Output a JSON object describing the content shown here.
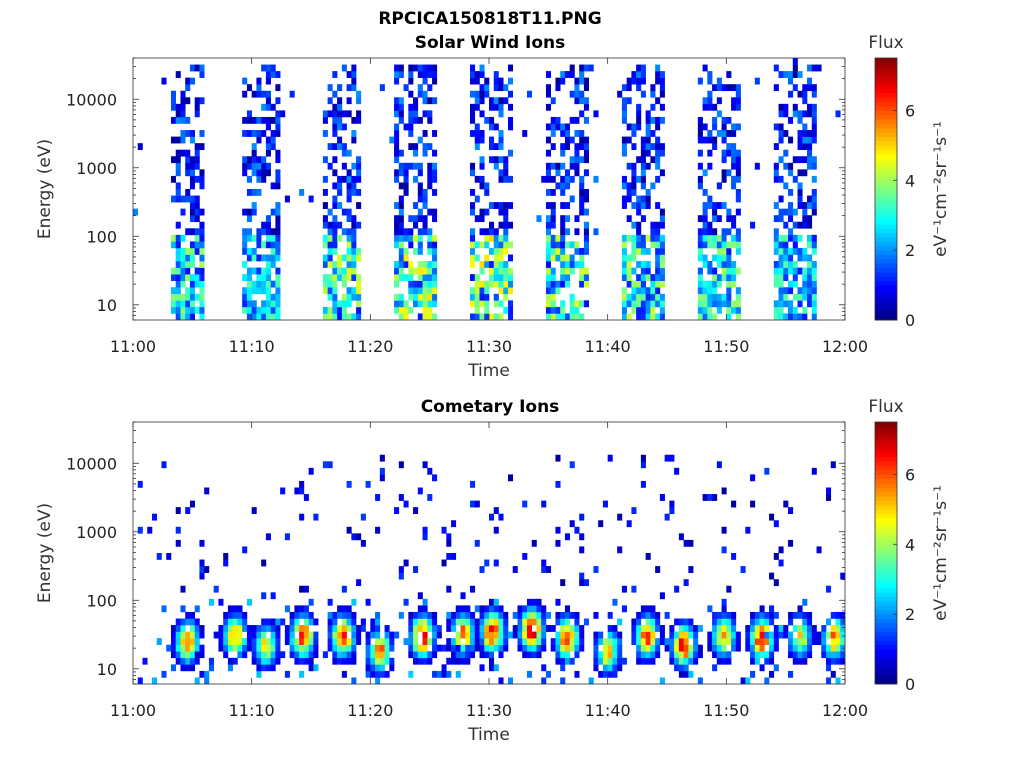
{
  "figure": {
    "title": "RPCICA150818T11.PNG"
  },
  "colormap": {
    "stops": [
      "#00007f",
      "#0000ff",
      "#007fff",
      "#00ffff",
      "#7fff7f",
      "#ffff00",
      "#ff7f00",
      "#ff0000",
      "#7f0000"
    ]
  },
  "chart_data": [
    {
      "type": "heatmap",
      "title": "Solar Wind Ions",
      "xlabel": "Time",
      "ylabel": "Energy (eV)",
      "x_range": [
        "11:00",
        "12:00"
      ],
      "x_ticks": [
        "11:00",
        "11:10",
        "11:20",
        "11:30",
        "11:40",
        "11:50",
        "12:00"
      ],
      "y_scale": "log",
      "y_range": [
        6,
        40000
      ],
      "y_ticks": [
        "10",
        "100",
        "1000",
        "10000"
      ],
      "colorbar": {
        "label": "Flux",
        "unit_label": "eV⁻¹cm⁻²sr⁻¹s⁻¹",
        "range": [
          0,
          7.5
        ],
        "ticks": [
          "0",
          "2",
          "4",
          "6"
        ]
      },
      "bursts": [
        {
          "start_min": 3.2,
          "end_min": 6.0,
          "max_energy_ev": 35000,
          "peak_flux": 4.0
        },
        {
          "start_min": 9.3,
          "end_min": 12.5,
          "max_energy_ev": 35000,
          "peak_flux": 3.5
        },
        {
          "start_min": 15.8,
          "end_min": 19.0,
          "max_energy_ev": 35000,
          "peak_flux": 4.5
        },
        {
          "start_min": 22.2,
          "end_min": 25.5,
          "max_energy_ev": 35000,
          "peak_flux": 5.0
        },
        {
          "start_min": 28.6,
          "end_min": 31.9,
          "max_energy_ev": 35000,
          "peak_flux": 5.0
        },
        {
          "start_min": 35.0,
          "end_min": 38.2,
          "max_energy_ev": 35000,
          "peak_flux": 4.5
        },
        {
          "start_min": 41.4,
          "end_min": 44.6,
          "max_energy_ev": 35000,
          "peak_flux": 4.5
        },
        {
          "start_min": 47.8,
          "end_min": 51.0,
          "max_energy_ev": 35000,
          "peak_flux": 4.0
        },
        {
          "start_min": 54.2,
          "end_min": 57.4,
          "max_energy_ev": 35000,
          "peak_flux": 3.5
        }
      ],
      "grid": false
    },
    {
      "type": "heatmap",
      "title": "Cometary Ions",
      "xlabel": "Time",
      "ylabel": "Energy (eV)",
      "x_range": [
        "11:00",
        "12:00"
      ],
      "x_ticks": [
        "11:00",
        "11:10",
        "11:20",
        "11:30",
        "11:40",
        "11:50",
        "12:00"
      ],
      "y_scale": "log",
      "y_range": [
        6,
        40000
      ],
      "y_ticks": [
        "10",
        "100",
        "1000",
        "10000"
      ],
      "colorbar": {
        "label": "Flux",
        "unit_label": "eV⁻¹cm⁻²sr⁻¹s⁻¹",
        "range": [
          0,
          7.5
        ],
        "ticks": [
          "0",
          "2",
          "4",
          "6"
        ]
      },
      "peaks": [
        {
          "time_min": 4.6,
          "energy_ev": 25,
          "flux": 6.5
        },
        {
          "time_min": 8.6,
          "energy_ev": 30,
          "flux": 6.0
        },
        {
          "time_min": 11.2,
          "energy_ev": 22,
          "flux": 5.0
        },
        {
          "time_min": 14.3,
          "energy_ev": 30,
          "flux": 7.0
        },
        {
          "time_min": 17.7,
          "energy_ev": 30,
          "flux": 6.5
        },
        {
          "time_min": 20.8,
          "energy_ev": 18,
          "flux": 6.0
        },
        {
          "time_min": 24.4,
          "energy_ev": 30,
          "flux": 7.0
        },
        {
          "time_min": 27.8,
          "energy_ev": 32,
          "flux": 6.0
        },
        {
          "time_min": 30.3,
          "energy_ev": 35,
          "flux": 7.0
        },
        {
          "time_min": 33.6,
          "energy_ev": 38,
          "flux": 7.5
        },
        {
          "time_min": 36.6,
          "energy_ev": 28,
          "flux": 6.5
        },
        {
          "time_min": 40.0,
          "energy_ev": 18,
          "flux": 5.5
        },
        {
          "time_min": 43.3,
          "energy_ev": 30,
          "flux": 6.5
        },
        {
          "time_min": 46.4,
          "energy_ev": 22,
          "flux": 7.0
        },
        {
          "time_min": 49.8,
          "energy_ev": 30,
          "flux": 5.5
        },
        {
          "time_min": 53.0,
          "energy_ev": 28,
          "flux": 7.0
        },
        {
          "time_min": 56.2,
          "energy_ev": 30,
          "flux": 5.0
        },
        {
          "time_min": 59.1,
          "energy_ev": 28,
          "flux": 6.0
        }
      ],
      "grid": false
    }
  ]
}
